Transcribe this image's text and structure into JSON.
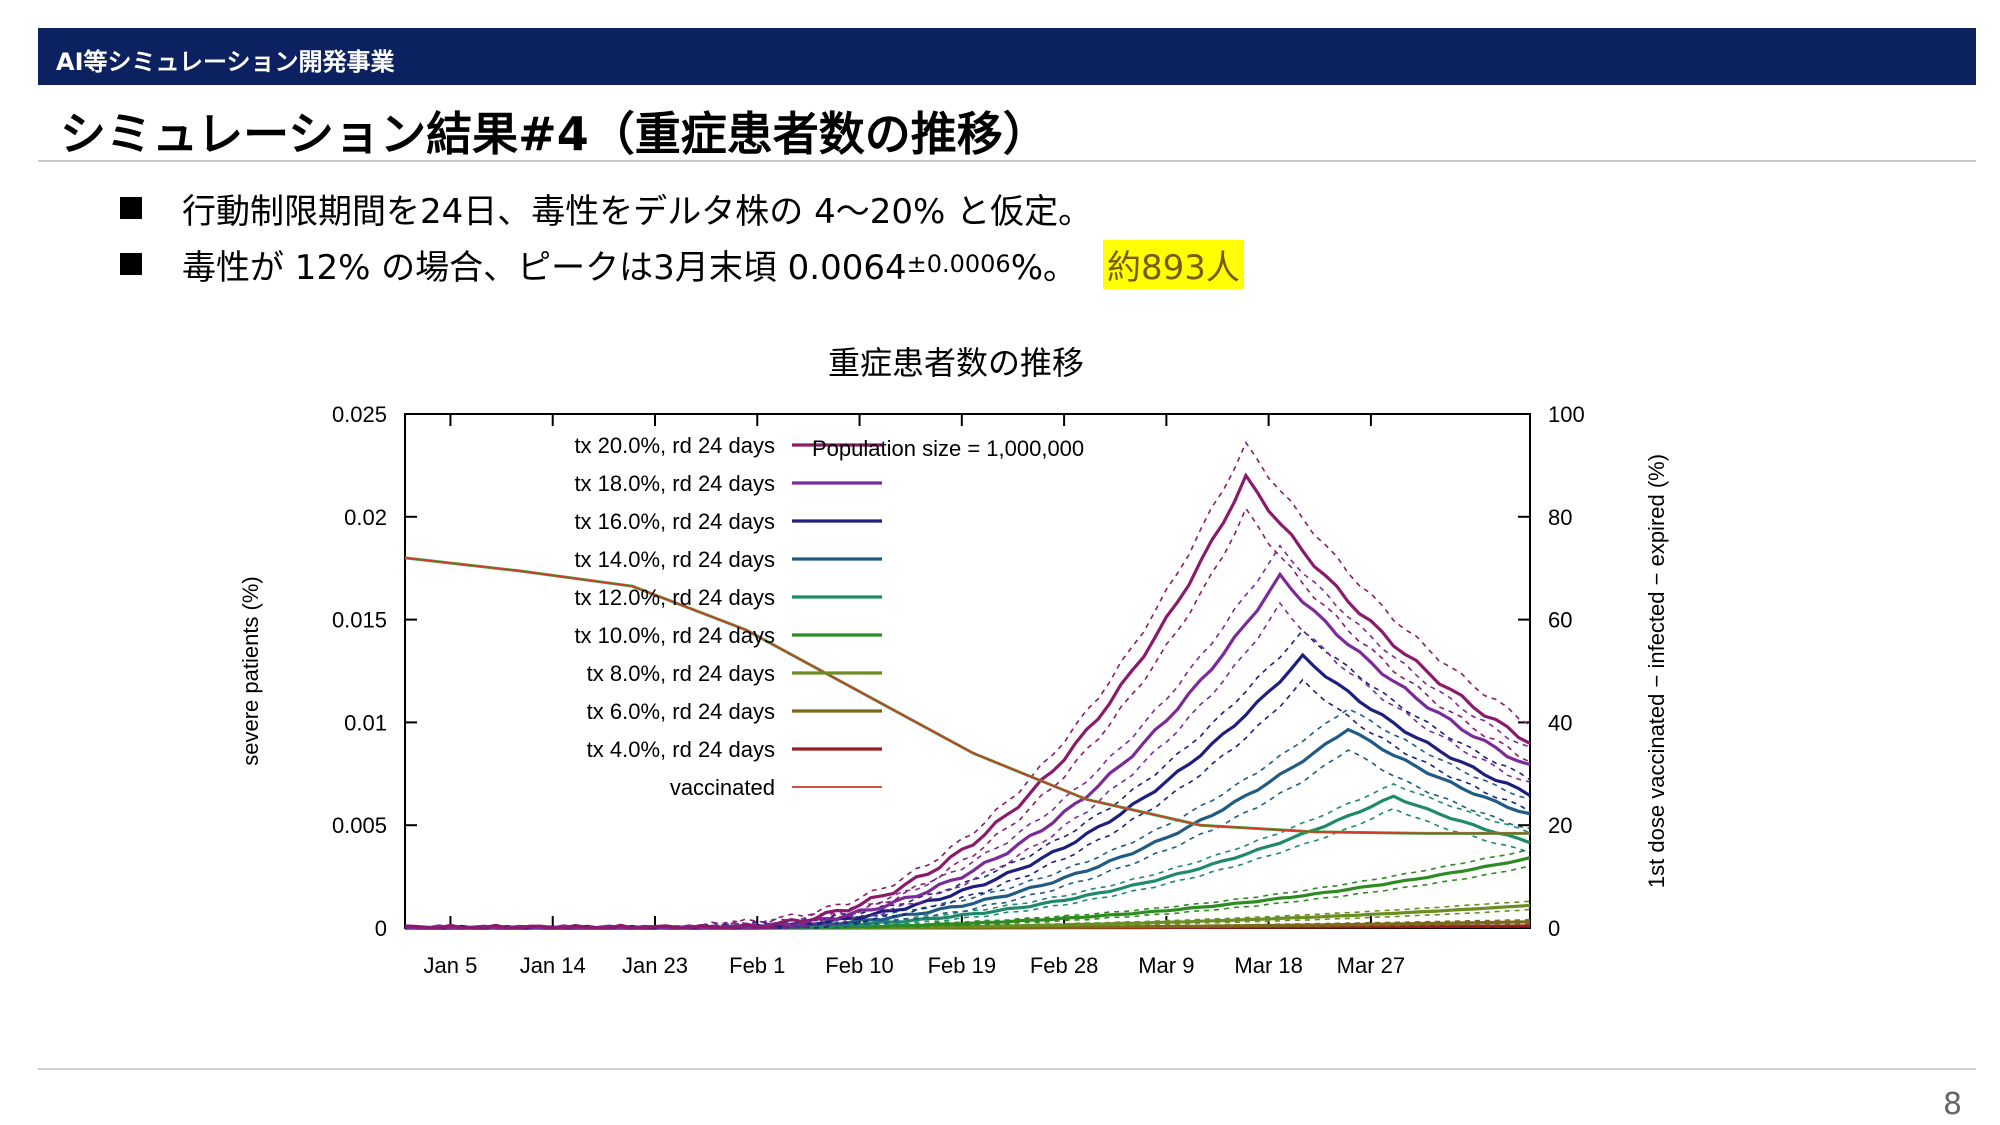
{
  "header": {
    "label": "AI等シミュレーション開発事業"
  },
  "slide": {
    "title": "シミュレーション結果#4（重症患者数の推移）",
    "page_number": "8"
  },
  "bullets": [
    {
      "text": "行動制限期間を24日、毒性をデルタ株の 4〜20% と仮定。"
    },
    {
      "text_main": "毒性が 12% の場合、ピークは3月末頃 0.0064",
      "text_small": "±0.0006",
      "text_tail": " %。",
      "highlight": "約893人"
    }
  ],
  "chart_data": {
    "type": "line",
    "title": "重症患者数の推移",
    "ylabel": "severe patients (%)",
    "y2label": "1st dose vaccinated − infected − expired (%)",
    "ylim": [
      0,
      0.025
    ],
    "y2lim": [
      0,
      100
    ],
    "yticks": [
      "0",
      "0.005",
      "0.01",
      "0.015",
      "0.02",
      "0.025"
    ],
    "y2ticks": [
      "0",
      "20",
      "40",
      "60",
      "80",
      "100"
    ],
    "x_range_days": [
      0,
      99
    ],
    "xticks": [
      {
        "label": "Jan 5",
        "day": 4
      },
      {
        "label": "Jan 14",
        "day": 13
      },
      {
        "label": "Jan 23",
        "day": 22
      },
      {
        "label": "Feb 1",
        "day": 31
      },
      {
        "label": "Feb 10",
        "day": 40
      },
      {
        "label": "Feb 19",
        "day": 49
      },
      {
        "label": "Feb 28",
        "day": 58
      },
      {
        "label": "Mar 9",
        "day": 67
      },
      {
        "label": "Mar 18",
        "day": 76
      },
      {
        "label": "Mar 27",
        "day": 85
      }
    ],
    "annotation": "Population size = 1,000,000",
    "legend_position": "top-left",
    "series": [
      {
        "name": "tx 20.0%, rd 24 days",
        "color": "#8b1a6b",
        "peak": 0.0219,
        "peak_day": 74,
        "band": 0.0016
      },
      {
        "name": "tx 18.0%, rd 24 days",
        "color": "#7b2a9a",
        "peak": 0.0171,
        "peak_day": 77,
        "band": 0.0014
      },
      {
        "name": "tx 16.0%, rd 24 days",
        "color": "#1c1f7e",
        "peak": 0.0132,
        "peak_day": 79,
        "band": 0.0012
      },
      {
        "name": "tx 14.0%, rd 24 days",
        "color": "#1f5c85",
        "peak": 0.0097,
        "peak_day": 83,
        "band": 0.001
      },
      {
        "name": "tx 12.0%, rd 24 days",
        "color": "#1e8a6a",
        "peak": 0.0064,
        "peak_day": 87,
        "band": 0.0006
      },
      {
        "name": "tx 10.0%, rd 24 days",
        "color": "#2e8b22",
        "peak": 0.0034,
        "peak_day": 99,
        "band": 0.0004
      },
      {
        "name": "tx 8.0%, rd 24 days",
        "color": "#6b8e23",
        "peak": 0.0011,
        "peak_day": 99,
        "band": 0.0002
      },
      {
        "name": "tx 6.0%, rd 24 days",
        "color": "#7a6a1a",
        "peak": 0.0003,
        "peak_day": 99,
        "band": 0.0001
      },
      {
        "name": "tx 4.0%, rd 24 days",
        "color": "#9b1c1c",
        "peak": 0.0001,
        "peak_day": 99,
        "band": 5e-05
      }
    ],
    "vaccinated": {
      "name": "vaccinated",
      "color": "#d03a2a",
      "axis": "y2",
      "points": [
        [
          0,
          72
        ],
        [
          10,
          69.5
        ],
        [
          20,
          66.5
        ],
        [
          30,
          58
        ],
        [
          40,
          46
        ],
        [
          50,
          34
        ],
        [
          60,
          25
        ],
        [
          70,
          20
        ],
        [
          80,
          18.7
        ],
        [
          90,
          18.4
        ],
        [
          99,
          18.4
        ]
      ]
    }
  }
}
